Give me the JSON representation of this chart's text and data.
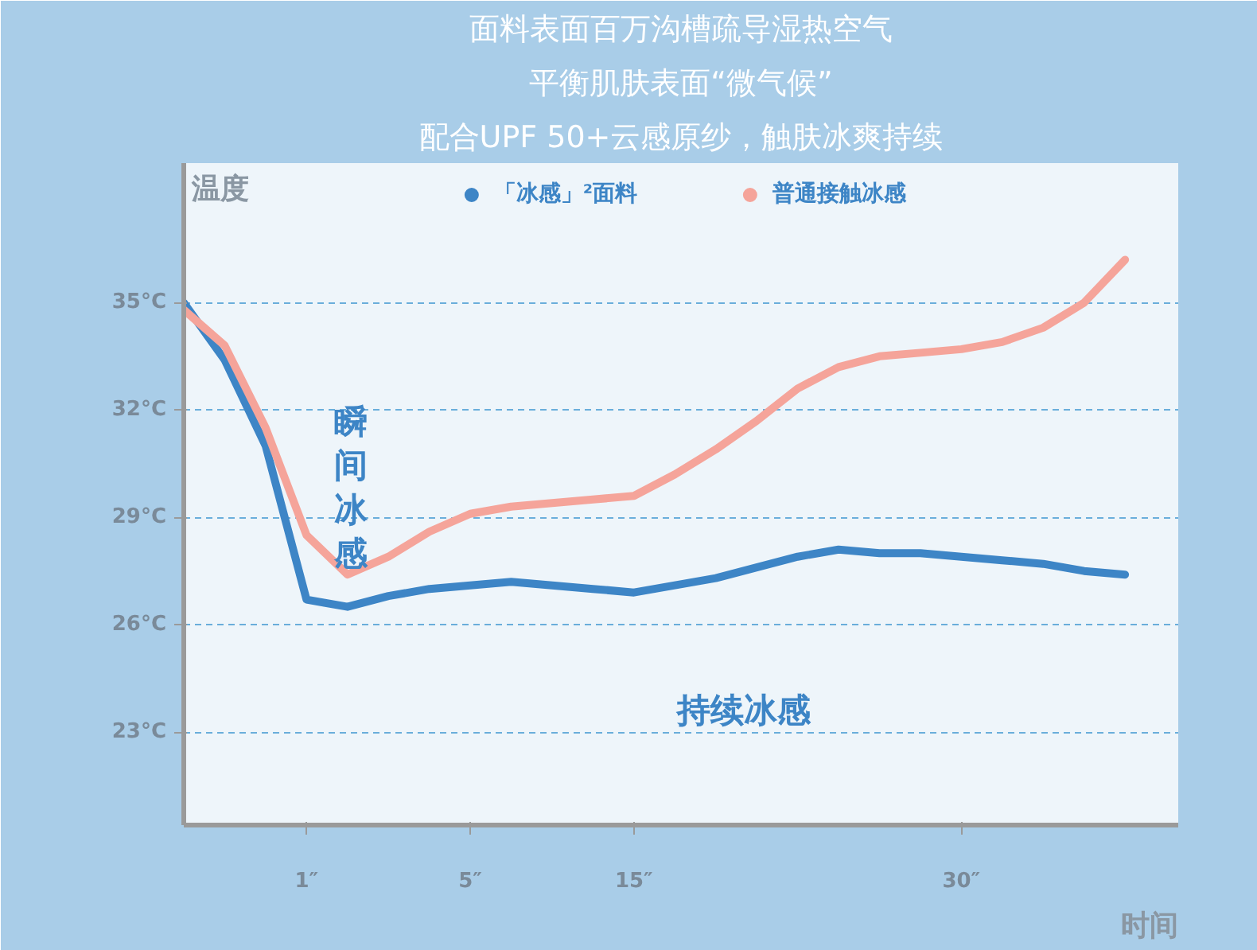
{
  "chart_data": {
    "type": "line",
    "title": "面料表面百万沟槽疏导湿热空气",
    "subtitle": "平衡肌肤表面“微气候”",
    "xlabel": "时间",
    "ylabel": "温度",
    "categories": [
      null,
      null,
      null,
      "1″",
      null,
      null,
      null,
      "5″",
      null,
      null,
      null,
      "15″",
      null,
      null,
      null,
      null,
      null,
      null,
      null,
      "30″",
      null,
      null,
      null,
      null
    ],
    "ylim": [
      20.4,
      38.9
    ],
    "yticks": [
      {
        "value": 23,
        "label": "23°C"
      },
      {
        "value": 26,
        "label": "26°C"
      },
      {
        "value": 29,
        "label": "29°C"
      },
      {
        "value": 32,
        "label": "32°C"
      },
      {
        "value": 35,
        "label": "35°C"
      }
    ],
    "grid": "y",
    "legend": "top",
    "marker": "none",
    "line_style": "solid",
    "series": [
      {
        "name": "「冰感」²面料",
        "color": "#3d85c6",
        "values": [
          35,
          33.4,
          31.0,
          26.7,
          26.5,
          26.8,
          27.0,
          27.1,
          27.2,
          27.1,
          27.0,
          26.9,
          27.1,
          27.3,
          27.6,
          27.9,
          28.1,
          28.0,
          28.0,
          27.9,
          27.8,
          27.7,
          27.5,
          27.4
        ]
      },
      {
        "name": "普通接触冰感",
        "color": "#f5a49a",
        "values": [
          34.8,
          33.8,
          31.5,
          28.5,
          27.4,
          27.9,
          28.6,
          29.1,
          29.3,
          29.4,
          29.5,
          29.6,
          30.2,
          30.9,
          31.7,
          32.6,
          33.2,
          33.5,
          33.6,
          33.7,
          33.9,
          34.3,
          35.0,
          36.2
        ]
      }
    ],
    "annotations": [
      "配合UPF 50+云感原纱，触肤冰爽持续",
      "瞬间冰感",
      "持续冰感"
    ]
  }
}
